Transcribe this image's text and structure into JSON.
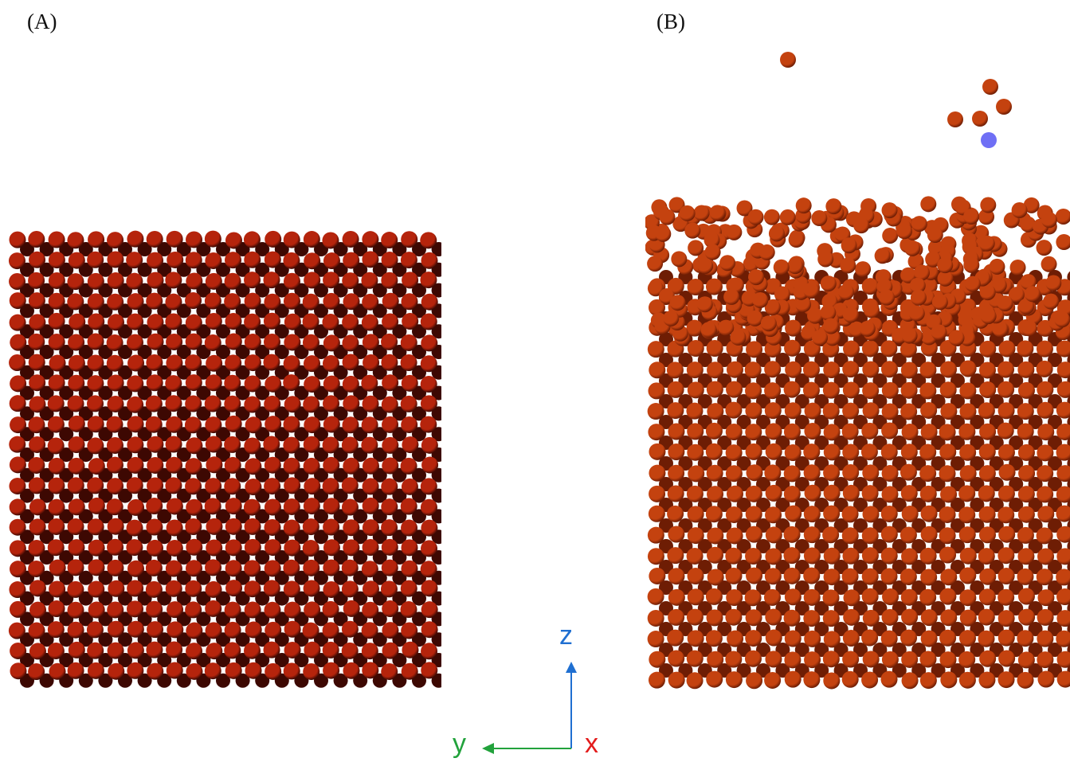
{
  "panels": [
    {
      "id": "a",
      "label": "(A)"
    },
    {
      "id": "b",
      "label": "(B)"
    }
  ],
  "axes": {
    "z": {
      "label": "z",
      "color": "#1f6fd1"
    },
    "y": {
      "label": "y",
      "color": "#22a23c"
    },
    "x": {
      "label": "x",
      "color": "#e31b1b"
    }
  },
  "colors": {
    "atom_a_fill": "#b5240c",
    "atom_a_dark": "#3d0802",
    "atom_b_fill": "#c4420f",
    "atom_b_dark": "#6e1d04",
    "adatom_blue": "#6f6ff5"
  }
}
